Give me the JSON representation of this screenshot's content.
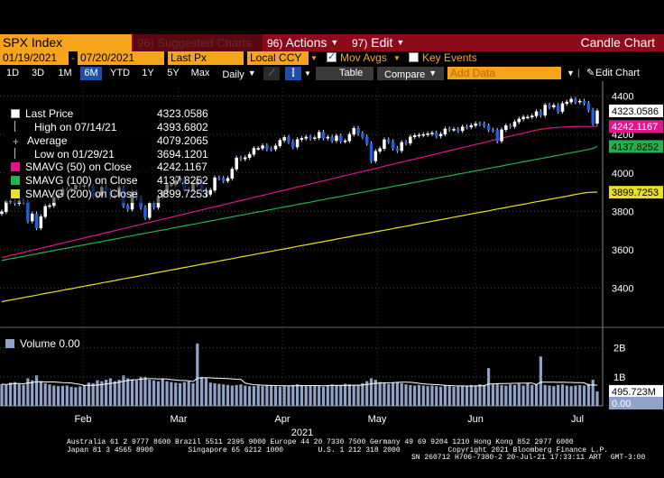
{
  "toolbar": {
    "security": "SPX Index",
    "suggested": "Suggested Charts",
    "suggested_num": "96)",
    "actions_num": "96)",
    "actions": "Actions",
    "edit_num": "97)",
    "edit": "Edit",
    "title": "Candle Chart"
  },
  "controls": {
    "start_date": "01/19/2021",
    "end_date": "07/20/2021",
    "field": "Last Px",
    "currency": "Local CCY",
    "mov_avgs": "Mov Avgs",
    "key_events": "Key Events"
  },
  "periods": [
    "1D",
    "3D",
    "1M",
    "6M",
    "YTD",
    "1Y",
    "5Y",
    "Max"
  ],
  "selected_period": "6M",
  "frequency": "Daily",
  "table_label": "Table",
  "compare_label": "Compare",
  "add_data_placeholder": "Add Data",
  "edit_chart_label": "Edit Chart",
  "legend": {
    "last_price": {
      "label": "Last Price",
      "value": "4323.0586"
    },
    "high": {
      "label": "High on 07/14/21",
      "value": "4393.6802"
    },
    "average": {
      "label": "Average",
      "value": "4079.2065"
    },
    "low": {
      "label": "Low on 01/29/21",
      "value": "3694.1201"
    },
    "sma50": {
      "label": "SMAVG (50)  on Close",
      "value": "4242.1167",
      "color": "#e0148c"
    },
    "sma100": {
      "label": "SMAVG (100)  on Close",
      "value": "4137.8252",
      "color": "#22b14c"
    },
    "sma200": {
      "label": "SMAVG (200)  on Close",
      "value": "3899.7253",
      "color": "#e8e020"
    }
  },
  "volume_legend": {
    "label": "Volume",
    "value": "0.00"
  },
  "chart_data": {
    "type": "candlestick",
    "y_ticks": [
      3400,
      3600,
      3800,
      4000,
      4200,
      4400
    ],
    "ylim": [
      3220,
      4440
    ],
    "x_labels": [
      "Feb",
      "Mar",
      "Apr",
      "May",
      "Jun",
      "Jul"
    ],
    "year_label": "2021",
    "price_tags": {
      "last": "4323.0586",
      "sma50": "4242.1167",
      "sma100": "4137.8252",
      "sma200": "3899.7253"
    },
    "volume_ticks": [
      "2B",
      "1B"
    ],
    "volume_tags": {
      "last": "495.723M",
      "zero": "0.00"
    },
    "close": [
      3798,
      3851,
      3853,
      3841,
      3855,
      3849,
      3750,
      3787,
      3714,
      3773,
      3826,
      3830,
      3871,
      3886,
      3915,
      3911,
      3916,
      3935,
      3932,
      3934,
      3932,
      3876,
      3882,
      3925,
      3906,
      3876,
      3881,
      3925,
      3829,
      3811,
      3901,
      3870,
      3820,
      3768,
      3842,
      3821,
      3875,
      3898,
      3939,
      3939,
      3960,
      3974,
      3915,
      3913,
      3940,
      3963,
      3910,
      3889,
      3910,
      3975,
      3972,
      3959,
      3972,
      4020,
      4078,
      4073,
      4080,
      4097,
      4128,
      4128,
      4142,
      4125,
      4124,
      4141,
      4170,
      4185,
      4163,
      4135,
      4174,
      4180,
      4187,
      4180,
      4183,
      4212,
      4181,
      4187,
      4168,
      4193,
      4165,
      4167,
      4201,
      4232,
      4205,
      4188,
      4153,
      4063,
      4113,
      4127,
      4173,
      4163,
      4128,
      4116,
      4159,
      4155,
      4188,
      4195,
      4197,
      4200,
      4204,
      4208,
      4192,
      4202,
      4229,
      4226,
      4227,
      4220,
      4240,
      4239,
      4247,
      4256,
      4255,
      4246,
      4224,
      4222,
      4166,
      4225,
      4246,
      4242,
      4266,
      4281,
      4291,
      4291,
      4297,
      4319,
      4300,
      4353,
      4343,
      4352,
      4320,
      4361,
      4369,
      4384,
      4369,
      4374,
      4363,
      4327,
      4258,
      4323
    ],
    "sma50": [
      3560,
      3565,
      3571,
      3576,
      3582,
      3587,
      3592,
      3598,
      3603,
      3608,
      3614,
      3619,
      3624,
      3630,
      3635,
      3641,
      3646,
      3651,
      3657,
      3662,
      3668,
      3673,
      3678,
      3684,
      3689,
      3694,
      3700,
      3705,
      3711,
      3716,
      3721,
      3727,
      3732,
      3738,
      3743,
      3748,
      3754,
      3759,
      3765,
      3770,
      3775,
      3781,
      3786,
      3792,
      3797,
      3802,
      3808,
      3813,
      3819,
      3824,
      3829,
      3835,
      3840,
      3846,
      3851,
      3856,
      3862,
      3867,
      3873,
      3878,
      3883,
      3889,
      3894,
      3900,
      3905,
      3910,
      3916,
      3921,
      3927,
      3932,
      3937,
      3943,
      3948,
      3954,
      3959,
      3964,
      3970,
      3975,
      3981,
      3986,
      3991,
      3997,
      4002,
      4008,
      4013,
      4018,
      4024,
      4029,
      4035,
      4040,
      4045,
      4051,
      4056,
      4062,
      4067,
      4072,
      4078,
      4083,
      4089,
      4094,
      4099,
      4105,
      4110,
      4116,
      4121,
      4126,
      4132,
      4137,
      4143,
      4148,
      4153,
      4159,
      4164,
      4170,
      4175,
      4180,
      4186,
      4191,
      4197,
      4202,
      4207,
      4213,
      4218,
      4223,
      4227,
      4230,
      4233,
      4235,
      4237,
      4239,
      4240,
      4241,
      4241,
      4242,
      4242,
      4242,
      4242,
      4242
    ],
    "sma100": [
      3545,
      3549,
      3554,
      3558,
      3562,
      3566,
      3571,
      3575,
      3579,
      3584,
      3588,
      3592,
      3596,
      3601,
      3605,
      3609,
      3613,
      3618,
      3622,
      3626,
      3631,
      3635,
      3639,
      3643,
      3648,
      3652,
      3656,
      3660,
      3665,
      3669,
      3673,
      3678,
      3682,
      3686,
      3690,
      3695,
      3699,
      3703,
      3707,
      3712,
      3716,
      3720,
      3725,
      3729,
      3733,
      3737,
      3742,
      3746,
      3750,
      3754,
      3759,
      3763,
      3767,
      3772,
      3776,
      3780,
      3784,
      3789,
      3793,
      3797,
      3801,
      3806,
      3810,
      3814,
      3819,
      3823,
      3827,
      3831,
      3836,
      3840,
      3844,
      3848,
      3853,
      3857,
      3861,
      3866,
      3870,
      3874,
      3878,
      3883,
      3887,
      3891,
      3895,
      3900,
      3904,
      3908,
      3913,
      3917,
      3921,
      3925,
      3930,
      3934,
      3938,
      3942,
      3947,
      3951,
      3955,
      3960,
      3964,
      3968,
      3972,
      3977,
      3981,
      3985,
      3989,
      3994,
      3998,
      4002,
      4007,
      4011,
      4015,
      4019,
      4024,
      4028,
      4032,
      4036,
      4041,
      4045,
      4049,
      4054,
      4058,
      4062,
      4066,
      4071,
      4075,
      4079,
      4083,
      4088,
      4092,
      4096,
      4101,
      4105,
      4109,
      4113,
      4118,
      4122,
      4128,
      4138
    ],
    "sma200": [
      3330,
      3335,
      3339,
      3343,
      3347,
      3352,
      3356,
      3360,
      3364,
      3369,
      3373,
      3377,
      3381,
      3385,
      3390,
      3394,
      3398,
      3402,
      3407,
      3411,
      3415,
      3419,
      3423,
      3428,
      3432,
      3436,
      3440,
      3445,
      3449,
      3453,
      3457,
      3461,
      3466,
      3470,
      3474,
      3478,
      3483,
      3487,
      3491,
      3495,
      3499,
      3504,
      3508,
      3512,
      3516,
      3521,
      3525,
      3529,
      3533,
      3537,
      3542,
      3546,
      3550,
      3554,
      3559,
      3563,
      3567,
      3571,
      3575,
      3580,
      3584,
      3588,
      3592,
      3597,
      3601,
      3605,
      3609,
      3613,
      3618,
      3622,
      3626,
      3630,
      3635,
      3639,
      3643,
      3647,
      3651,
      3656,
      3660,
      3664,
      3668,
      3673,
      3677,
      3681,
      3685,
      3689,
      3694,
      3698,
      3702,
      3706,
      3711,
      3715,
      3719,
      3723,
      3727,
      3732,
      3736,
      3740,
      3744,
      3749,
      3753,
      3757,
      3761,
      3765,
      3770,
      3774,
      3778,
      3782,
      3787,
      3791,
      3795,
      3799,
      3803,
      3808,
      3812,
      3816,
      3820,
      3825,
      3829,
      3833,
      3837,
      3841,
      3846,
      3850,
      3854,
      3858,
      3863,
      3867,
      3871,
      3875,
      3879,
      3884,
      3888,
      3892,
      3896,
      3899,
      3900,
      3900
    ],
    "volume": [
      0.75,
      0.72,
      0.8,
      0.82,
      0.75,
      0.73,
      0.95,
      0.88,
      1.05,
      0.85,
      0.78,
      0.74,
      0.7,
      0.68,
      0.69,
      0.7,
      0.66,
      0.64,
      0.67,
      0.7,
      0.8,
      0.78,
      0.88,
      0.85,
      0.9,
      0.95,
      0.85,
      0.9,
      1.05,
      0.95,
      0.92,
      0.88,
      1.0,
      1.0,
      0.9,
      0.88,
      0.85,
      0.92,
      0.85,
      0.82,
      0.8,
      0.78,
      0.82,
      0.84,
      0.78,
      2.15,
      1.0,
      0.95,
      0.8,
      0.78,
      0.76,
      0.74,
      0.72,
      0.7,
      0.72,
      0.74,
      0.7,
      0.68,
      0.68,
      0.7,
      0.68,
      0.72,
      0.7,
      0.68,
      0.66,
      0.7,
      0.68,
      0.72,
      0.74,
      0.7,
      0.68,
      0.7,
      0.72,
      0.68,
      0.66,
      0.7,
      0.74,
      0.7,
      0.72,
      0.76,
      0.74,
      0.7,
      0.72,
      0.78,
      0.85,
      0.95,
      0.9,
      0.82,
      0.78,
      0.76,
      0.8,
      0.82,
      0.78,
      0.74,
      0.72,
      0.7,
      0.72,
      0.7,
      0.68,
      0.7,
      0.68,
      0.66,
      0.7,
      0.68,
      0.66,
      0.68,
      0.7,
      0.68,
      0.72,
      0.7,
      0.74,
      0.72,
      1.3,
      0.74,
      0.76,
      0.72,
      0.7,
      0.74,
      0.72,
      0.76,
      0.7,
      0.78,
      0.72,
      0.74,
      1.7,
      0.72,
      0.7,
      0.68,
      0.72,
      0.74,
      0.7,
      0.68,
      0.7,
      0.72,
      0.7,
      0.76,
      0.9,
      0.5
    ],
    "volume_ylim": [
      0,
      2.55
    ]
  },
  "footer": {
    "line1": "Australia 61 2 9777 8600 Brazil 5511 2395 9000 Europe 44 20 7330 7500 Germany 49 69 9204 1210 Hong Kong 852 2977 6000",
    "line2": "Japan 81 3 4565 8900        Singapore 65 6212 1000        U.S. 1 212 318 2000           Copyright 2021 Bloomberg Finance L.P.",
    "line3": "SN 260712 H706-7380-2 20-Jul-21 17:33:11 ART  GMT-3:00"
  }
}
